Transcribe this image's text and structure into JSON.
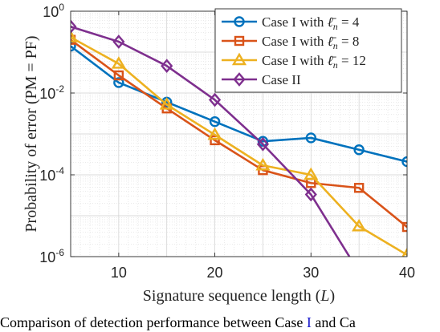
{
  "chart_data": {
    "type": "line",
    "xlabel": "Signature sequence length",
    "xlabel_var": "L",
    "ylabel": "Probability of error (PM = PF)",
    "xlim": [
      5,
      40
    ],
    "ylim": [
      1e-06,
      1
    ],
    "yscale": "log",
    "xticks": [
      "10",
      "20",
      "30",
      "40"
    ],
    "yticks": [
      {
        "base": "10",
        "exp": "0"
      },
      {
        "base": "10",
        "exp": "-2"
      },
      {
        "base": "10",
        "exp": "-4"
      },
      {
        "base": "10",
        "exp": "-6"
      }
    ],
    "grid": true,
    "minor_grid": true,
    "legend_position": "top-right",
    "series": [
      {
        "name": "Case I with ℓ̄n = 4",
        "legend_prefix": "Case I with ",
        "legend_math": "ℓ̄",
        "legend_sub": "n",
        "legend_value": "= 4",
        "color": "#0072BD",
        "marker": "circle",
        "x": [
          5,
          10,
          15,
          20,
          25,
          30,
          35,
          40
        ],
        "y": [
          0.14,
          0.018,
          0.006,
          0.002,
          0.00066,
          0.0008,
          0.00041,
          0.00021
        ]
      },
      {
        "name": "Case I with ℓ̄n = 8",
        "legend_prefix": "Case I with ",
        "legend_math": "ℓ̄",
        "legend_sub": "n",
        "legend_value": "= 8",
        "color": "#D95319",
        "marker": "square",
        "x": [
          5,
          10,
          15,
          20,
          25,
          30,
          35,
          40
        ],
        "y": [
          0.2,
          0.027,
          0.0042,
          0.0007,
          0.00013,
          6.3e-05,
          4.8e-05,
          5.3e-06
        ]
      },
      {
        "name": "Case I with ℓ̄n = 12",
        "legend_prefix": "Case I with ",
        "legend_math": "ℓ̄",
        "legend_sub": "n",
        "legend_value": "= 12",
        "color": "#EDB120",
        "marker": "triangle",
        "x": [
          5,
          10,
          15,
          20,
          25,
          30,
          35,
          40
        ],
        "y": [
          0.23,
          0.052,
          0.0052,
          0.00095,
          0.00017,
          0.0001,
          5.5e-06,
          1.1e-06
        ]
      },
      {
        "name": "Case II",
        "legend_prefix": "Case II",
        "legend_math": "",
        "legend_sub": "",
        "legend_value": "",
        "color": "#7E2F8E",
        "marker": "diamond",
        "x": [
          5,
          10,
          15,
          20,
          25,
          30,
          34
        ],
        "y": [
          0.42,
          0.18,
          0.046,
          0.0068,
          0.00056,
          3.3e-05,
          1e-06
        ]
      }
    ]
  },
  "caption": {
    "prefix": "Comparison of detection performance between Case ",
    "ref": "I",
    "suffix": " and Ca"
  }
}
